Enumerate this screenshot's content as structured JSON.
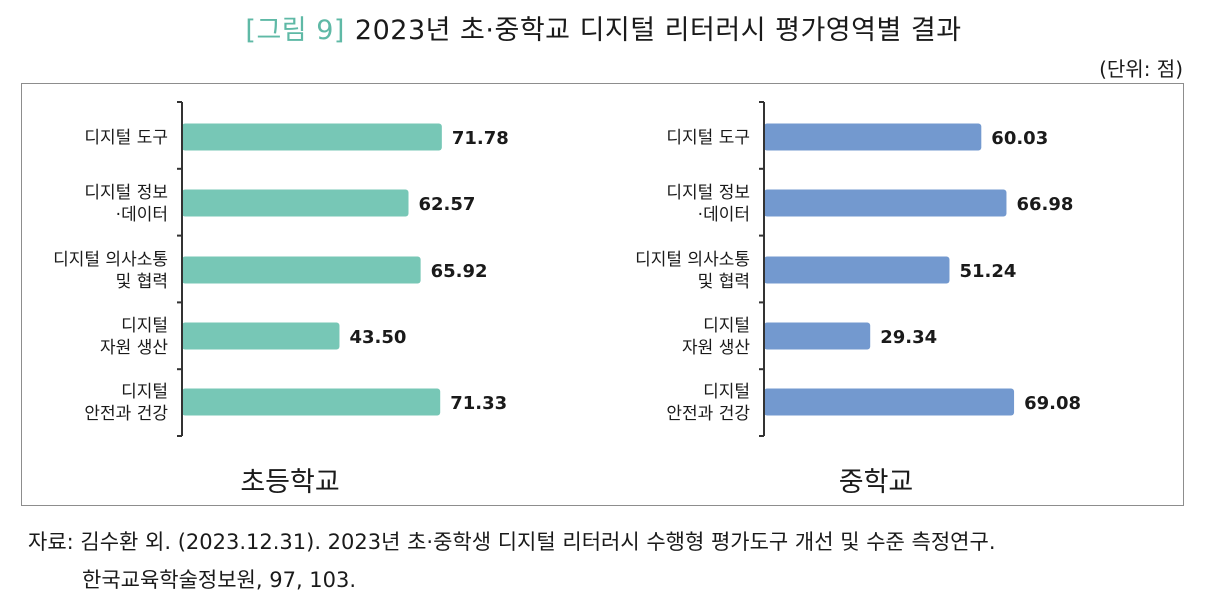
{
  "title": {
    "label": "[그림 9]",
    "text": "2023년 초·중학교 디지털 리터러시 평가영역별 결과"
  },
  "unit": "(단위: 점)",
  "source": {
    "line1": "자료: 김수환 외. (2023.12.31). 2023년 초·중학생 디지털 리터러시 수행형 평가도구 개선 및 수준 측정연구.",
    "line2": "한국교육학술정보원, 97, 103."
  },
  "colors": {
    "elementary": "#77c7b6",
    "middle": "#7399cf",
    "title_label": "#5fb9a6"
  },
  "chart_data": [
    {
      "type": "bar",
      "orientation": "horizontal",
      "title": "초등학교",
      "categories": [
        [
          "디지털 도구"
        ],
        [
          "디지털 정보",
          "·데이터"
        ],
        [
          "디지털 의사소통",
          "및 협력"
        ],
        [
          "디지털",
          "자원 생산"
        ],
        [
          "디지털",
          "안전과 건강"
        ]
      ],
      "values": [
        71.78,
        62.57,
        65.92,
        43.5,
        71.33
      ],
      "value_labels": [
        "71.78",
        "62.57",
        "65.92",
        "43.50",
        "71.33"
      ],
      "xlim": [
        0,
        100
      ]
    },
    {
      "type": "bar",
      "orientation": "horizontal",
      "title": "중학교",
      "categories": [
        [
          "디지털 도구"
        ],
        [
          "디지털 정보",
          "·데이터"
        ],
        [
          "디지털 의사소통",
          "및 협력"
        ],
        [
          "디지털",
          "자원 생산"
        ],
        [
          "디지털",
          "안전과 건강"
        ]
      ],
      "values": [
        60.03,
        66.98,
        51.24,
        29.34,
        69.08
      ],
      "value_labels": [
        "60.03",
        "66.98",
        "51.24",
        "29.34",
        "69.08"
      ],
      "xlim": [
        0,
        100
      ]
    }
  ]
}
